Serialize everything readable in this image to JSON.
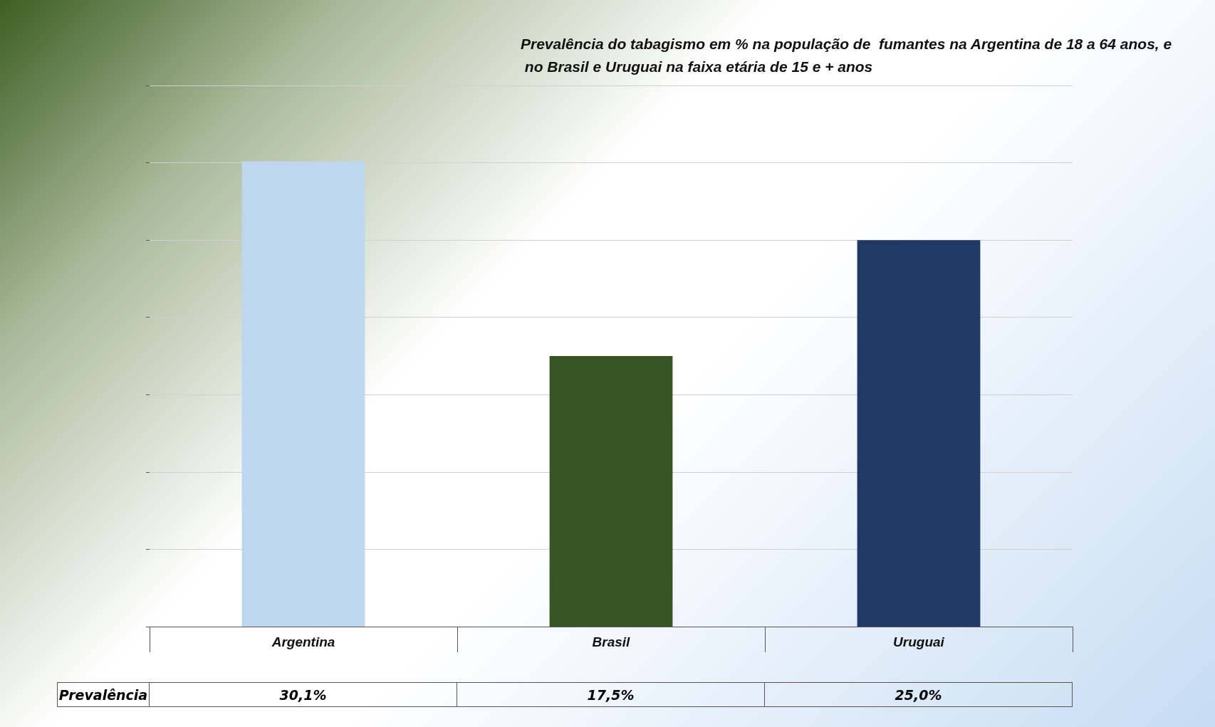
{
  "chart_data": {
    "type": "bar",
    "title": "Prevalência do tabagismo em % na população de  fumantes na Argentina de 18 a 64 anos, e  no Brasil e Uruguai na faixa etária de 15 e + anos",
    "categories": [
      "Argentina",
      "Brasil",
      "Uruguai"
    ],
    "series": [
      {
        "name": "Prevalência",
        "colors": [
          "#bdd7ee",
          "#375623",
          "#1f3864"
        ],
        "values": [
          30.1,
          17.5,
          25.0
        ],
        "value_labels": [
          "30,1%",
          "17,5%",
          "25,0%"
        ]
      }
    ],
    "ylim": [
      0,
      35
    ],
    "yticks": [
      {
        "value": 0,
        "label": null
      },
      {
        "value": 5,
        "label": null
      },
      {
        "value": 10,
        "label": null
      },
      {
        "value": 15,
        "label": null
      },
      {
        "value": 20,
        "label": null
      },
      {
        "value": 25,
        "label": null
      },
      {
        "value": 30,
        "label": null
      },
      {
        "value": 35,
        "label": null
      }
    ],
    "grid": "y",
    "legend": false,
    "tick_labels": "x"
  }
}
